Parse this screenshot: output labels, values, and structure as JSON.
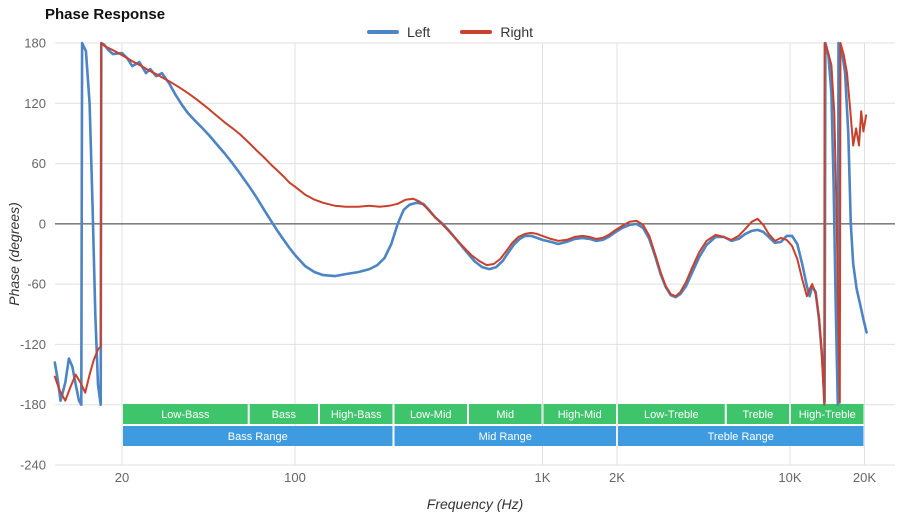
{
  "chart_data": {
    "type": "line",
    "title": "Phase Response",
    "xlabel": "Frequency (Hz)",
    "ylabel": "Phase (degrees)",
    "x_scale": "log",
    "x_range": [
      10.7,
      26000
    ],
    "y_range": [
      -240,
      180
    ],
    "grid": true,
    "legend_position": "top-center",
    "y_ticks": [
      180,
      120,
      60,
      0,
      -60,
      -120,
      -180,
      -240
    ],
    "x_ticks": [
      {
        "value": 20,
        "label": "20"
      },
      {
        "value": 100,
        "label": "100"
      },
      {
        "value": 1000,
        "label": "1K"
      },
      {
        "value": 2000,
        "label": "2K"
      },
      {
        "value": 10000,
        "label": "10K"
      },
      {
        "value": 20000,
        "label": "20K"
      }
    ],
    "colors": {
      "left_line": "#4c84c4",
      "right_line": "#c9412c",
      "grid": "#e0e0e0",
      "zero_line": "#3a3a3a",
      "sub_band": "#3ec46a",
      "range_band": "#3f9be0"
    },
    "series": [
      {
        "name": "Left",
        "color": "#4c84c4",
        "points": [
          [
            10.7,
            -138
          ],
          [
            11,
            -155
          ],
          [
            11.3,
            -176
          ],
          [
            11.8,
            -158
          ],
          [
            12.2,
            -134
          ],
          [
            12.6,
            -142
          ],
          [
            13,
            -160
          ],
          [
            13.4,
            -176
          ],
          [
            13.7,
            -180
          ],
          [
            13.8,
            180
          ],
          [
            14.3,
            172
          ],
          [
            14.8,
            120
          ],
          [
            15.2,
            20
          ],
          [
            15.6,
            -90
          ],
          [
            16,
            -160
          ],
          [
            16.4,
            -180
          ],
          [
            16.5,
            180
          ],
          [
            17,
            178
          ],
          [
            17.6,
            173
          ],
          [
            18.4,
            169
          ],
          [
            20,
            170
          ],
          [
            21,
            165
          ],
          [
            22,
            157
          ],
          [
            23.5,
            161
          ],
          [
            25,
            150
          ],
          [
            26,
            154
          ],
          [
            27.5,
            147
          ],
          [
            29,
            150
          ],
          [
            31,
            140
          ],
          [
            33,
            128
          ],
          [
            35,
            118
          ],
          [
            37,
            110
          ],
          [
            39,
            104
          ],
          [
            42,
            96
          ],
          [
            45,
            88
          ],
          [
            48,
            80
          ],
          [
            52,
            70
          ],
          [
            56,
            60
          ],
          [
            60,
            50
          ],
          [
            65,
            38
          ],
          [
            70,
            26
          ],
          [
            75,
            14
          ],
          [
            80,
            3
          ],
          [
            85,
            -7
          ],
          [
            90,
            -16
          ],
          [
            95,
            -24
          ],
          [
            100,
            -31
          ],
          [
            110,
            -42
          ],
          [
            120,
            -48
          ],
          [
            130,
            -51
          ],
          [
            145,
            -52
          ],
          [
            160,
            -50
          ],
          [
            180,
            -48
          ],
          [
            200,
            -45
          ],
          [
            215,
            -41
          ],
          [
            230,
            -34
          ],
          [
            245,
            -20
          ],
          [
            260,
            0
          ],
          [
            275,
            14
          ],
          [
            290,
            19
          ],
          [
            310,
            21
          ],
          [
            330,
            20
          ],
          [
            350,
            13
          ],
          [
            370,
            6
          ],
          [
            395,
            0
          ],
          [
            420,
            -7
          ],
          [
            450,
            -16
          ],
          [
            490,
            -27
          ],
          [
            530,
            -37
          ],
          [
            570,
            -43
          ],
          [
            610,
            -45
          ],
          [
            650,
            -43
          ],
          [
            690,
            -37
          ],
          [
            730,
            -28
          ],
          [
            770,
            -20
          ],
          [
            810,
            -15
          ],
          [
            850,
            -12
          ],
          [
            900,
            -12
          ],
          [
            950,
            -14
          ],
          [
            1000,
            -16
          ],
          [
            1080,
            -18
          ],
          [
            1160,
            -20
          ],
          [
            1250,
            -18
          ],
          [
            1350,
            -15
          ],
          [
            1450,
            -14
          ],
          [
            1550,
            -15
          ],
          [
            1650,
            -17
          ],
          [
            1750,
            -16
          ],
          [
            1850,
            -13
          ],
          [
            1950,
            -9
          ],
          [
            2100,
            -4
          ],
          [
            2250,
            -1
          ],
          [
            2400,
            0
          ],
          [
            2550,
            -4
          ],
          [
            2700,
            -15
          ],
          [
            2850,
            -32
          ],
          [
            3000,
            -50
          ],
          [
            3150,
            -63
          ],
          [
            3300,
            -71
          ],
          [
            3450,
            -73
          ],
          [
            3600,
            -70
          ],
          [
            3800,
            -62
          ],
          [
            4000,
            -50
          ],
          [
            4300,
            -33
          ],
          [
            4600,
            -21
          ],
          [
            5000,
            -13
          ],
          [
            5400,
            -13
          ],
          [
            5800,
            -17
          ],
          [
            6200,
            -15
          ],
          [
            6600,
            -10
          ],
          [
            7000,
            -7
          ],
          [
            7400,
            -6
          ],
          [
            7800,
            -8
          ],
          [
            8200,
            -13
          ],
          [
            8700,
            -19
          ],
          [
            9200,
            -18
          ],
          [
            9700,
            -12
          ],
          [
            10200,
            -12
          ],
          [
            10700,
            -20
          ],
          [
            11200,
            -40
          ],
          [
            11700,
            -62
          ],
          [
            12000,
            -72
          ],
          [
            12300,
            -62
          ],
          [
            12700,
            -68
          ],
          [
            13100,
            -95
          ],
          [
            13500,
            -135
          ],
          [
            13800,
            -178
          ],
          [
            13900,
            180
          ],
          [
            14300,
            168
          ],
          [
            14700,
            130
          ],
          [
            15000,
            40
          ],
          [
            15300,
            -80
          ],
          [
            15600,
            -180
          ],
          [
            15700,
            180
          ],
          [
            16200,
            172
          ],
          [
            16700,
            150
          ],
          [
            17200,
            90
          ],
          [
            17600,
            0
          ],
          [
            18000,
            -40
          ],
          [
            18600,
            -65
          ],
          [
            19200,
            -80
          ],
          [
            19800,
            -95
          ],
          [
            20400,
            -108
          ]
        ]
      },
      {
        "name": "Right",
        "color": "#c9412c",
        "points": [
          [
            10.7,
            -152
          ],
          [
            11.2,
            -166
          ],
          [
            11.8,
            -176
          ],
          [
            12.4,
            -162
          ],
          [
            13,
            -150
          ],
          [
            13.6,
            -158
          ],
          [
            14.2,
            -168
          ],
          [
            14.8,
            -150
          ],
          [
            15.4,
            -135
          ],
          [
            16,
            -125
          ],
          [
            16.4,
            -122
          ],
          [
            16.5,
            180
          ],
          [
            17,
            177
          ],
          [
            18,
            174
          ],
          [
            19,
            171
          ],
          [
            20,
            168
          ],
          [
            22,
            162
          ],
          [
            24,
            157
          ],
          [
            26,
            152
          ],
          [
            28,
            148
          ],
          [
            31,
            142
          ],
          [
            34,
            136
          ],
          [
            37,
            130
          ],
          [
            40,
            124
          ],
          [
            44,
            116
          ],
          [
            48,
            108
          ],
          [
            52,
            101
          ],
          [
            56,
            95
          ],
          [
            60,
            89
          ],
          [
            65,
            81
          ],
          [
            70,
            73
          ],
          [
            75,
            66
          ],
          [
            80,
            59
          ],
          [
            85,
            53
          ],
          [
            90,
            47
          ],
          [
            95,
            41
          ],
          [
            100,
            37
          ],
          [
            110,
            29
          ],
          [
            120,
            24
          ],
          [
            130,
            21
          ],
          [
            145,
            18
          ],
          [
            160,
            17
          ],
          [
            180,
            17
          ],
          [
            200,
            18
          ],
          [
            220,
            17
          ],
          [
            240,
            18
          ],
          [
            260,
            20
          ],
          [
            280,
            24
          ],
          [
            300,
            25
          ],
          [
            320,
            22
          ],
          [
            340,
            16
          ],
          [
            360,
            9
          ],
          [
            385,
            2
          ],
          [
            410,
            -5
          ],
          [
            440,
            -13
          ],
          [
            475,
            -22
          ],
          [
            515,
            -31
          ],
          [
            555,
            -37
          ],
          [
            595,
            -41
          ],
          [
            635,
            -40
          ],
          [
            675,
            -35
          ],
          [
            715,
            -27
          ],
          [
            755,
            -19
          ],
          [
            800,
            -13
          ],
          [
            850,
            -10
          ],
          [
            900,
            -9
          ],
          [
            950,
            -10
          ],
          [
            1000,
            -12
          ],
          [
            1080,
            -15
          ],
          [
            1160,
            -17
          ],
          [
            1250,
            -16
          ],
          [
            1350,
            -13
          ],
          [
            1450,
            -12
          ],
          [
            1550,
            -13
          ],
          [
            1650,
            -15
          ],
          [
            1750,
            -14
          ],
          [
            1850,
            -11
          ],
          [
            1950,
            -7
          ],
          [
            2100,
            -2
          ],
          [
            2250,
            2
          ],
          [
            2400,
            3
          ],
          [
            2550,
            -1
          ],
          [
            2700,
            -12
          ],
          [
            2850,
            -30
          ],
          [
            3000,
            -48
          ],
          [
            3150,
            -62
          ],
          [
            3300,
            -70
          ],
          [
            3450,
            -72
          ],
          [
            3600,
            -68
          ],
          [
            3800,
            -58
          ],
          [
            4000,
            -45
          ],
          [
            4300,
            -28
          ],
          [
            4600,
            -17
          ],
          [
            5000,
            -11
          ],
          [
            5400,
            -13
          ],
          [
            5800,
            -16
          ],
          [
            6200,
            -12
          ],
          [
            6600,
            -5
          ],
          [
            7000,
            2
          ],
          [
            7400,
            5
          ],
          [
            7800,
            -1
          ],
          [
            8200,
            -10
          ],
          [
            8700,
            -17
          ],
          [
            9200,
            -14
          ],
          [
            9700,
            -16
          ],
          [
            10200,
            -22
          ],
          [
            10700,
            -35
          ],
          [
            11200,
            -55
          ],
          [
            11700,
            -72
          ],
          [
            12000,
            -65
          ],
          [
            12300,
            -60
          ],
          [
            12700,
            -70
          ],
          [
            13100,
            -92
          ],
          [
            13400,
            -125
          ],
          [
            13700,
            -170
          ],
          [
            13750,
            -180
          ],
          [
            13800,
            180
          ],
          [
            14200,
            172
          ],
          [
            14700,
            158
          ],
          [
            15100,
            110
          ],
          [
            15400,
            20
          ],
          [
            15700,
            -100
          ],
          [
            15900,
            -178
          ],
          [
            16000,
            180
          ],
          [
            16500,
            168
          ],
          [
            17000,
            150
          ],
          [
            17500,
            115
          ],
          [
            18000,
            78
          ],
          [
            18500,
            95
          ],
          [
            19000,
            78
          ],
          [
            19400,
            112
          ],
          [
            19800,
            92
          ],
          [
            20300,
            108
          ]
        ]
      }
    ],
    "bands": {
      "rows": [
        {
          "name": "sub-bands",
          "color": "#3ec46a",
          "items": [
            {
              "label": "Low-Bass",
              "from": 20,
              "to": 65
            },
            {
              "label": "Bass",
              "from": 65,
              "to": 125
            },
            {
              "label": "High-Bass",
              "from": 125,
              "to": 250
            },
            {
              "label": "Low-Mid",
              "from": 250,
              "to": 500
            },
            {
              "label": "Mid",
              "from": 500,
              "to": 1000
            },
            {
              "label": "High-Mid",
              "from": 1000,
              "to": 2000
            },
            {
              "label": "Low-Treble",
              "from": 2000,
              "to": 5500
            },
            {
              "label": "Treble",
              "from": 5500,
              "to": 10000
            },
            {
              "label": "High-Treble",
              "from": 10000,
              "to": 20000
            }
          ]
        },
        {
          "name": "ranges",
          "color": "#3f9be0",
          "items": [
            {
              "label": "Bass Range",
              "from": 20,
              "to": 250
            },
            {
              "label": "Mid Range",
              "from": 250,
              "to": 2000
            },
            {
              "label": "Treble Range",
              "from": 2000,
              "to": 20000
            }
          ]
        }
      ]
    }
  }
}
